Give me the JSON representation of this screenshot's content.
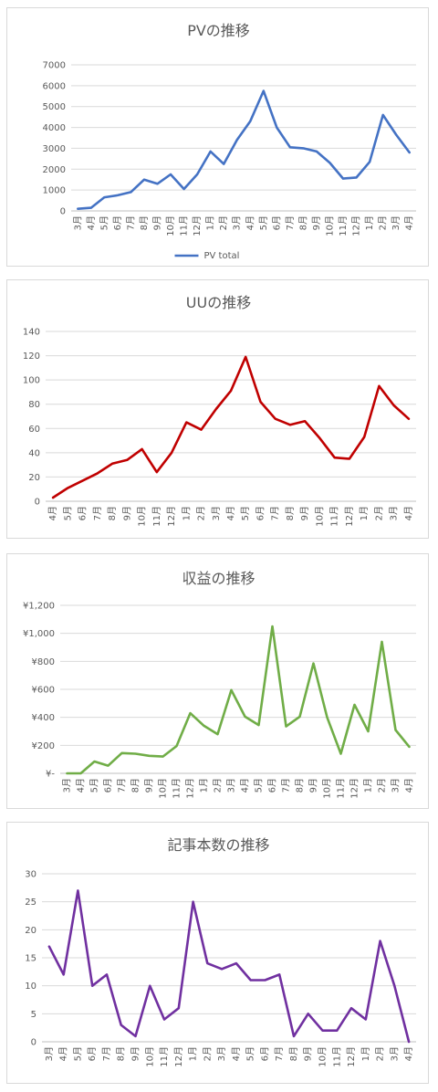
{
  "chart_data": [
    {
      "type": "line",
      "title": "PVの推移",
      "categories": [
        "3月",
        "4月",
        "5月",
        "6月",
        "7月",
        "8月",
        "9月",
        "10月",
        "11月",
        "12月",
        "1月",
        "2月",
        "3月",
        "4月",
        "5月",
        "6月",
        "7月",
        "8月",
        "9月",
        "10月",
        "11月",
        "12月",
        "1月",
        "2月",
        "3月",
        "4月"
      ],
      "series": [
        {
          "name": "PV total",
          "values": [
            100,
            150,
            650,
            750,
            900,
            1500,
            1300,
            1750,
            1050,
            1750,
            2850,
            2250,
            3400,
            4300,
            5750,
            4000,
            3050,
            3000,
            2850,
            2300,
            1550,
            1600,
            2350,
            4600,
            3650,
            2800
          ]
        }
      ],
      "yticks": [
        "0",
        "1000",
        "2000",
        "3000",
        "4000",
        "5000",
        "6000",
        "7000"
      ],
      "ylim": [
        0,
        7000
      ],
      "color": "#4472c4",
      "legend": "bottom",
      "grid": true
    },
    {
      "type": "line",
      "title": "UUの推移",
      "categories": [
        "4月",
        "5月",
        "6月",
        "7月",
        "8月",
        "9月",
        "10月",
        "11月",
        "12月",
        "1月",
        "2月",
        "3月",
        "4月",
        "5月",
        "6月",
        "7月",
        "8月",
        "9月",
        "10月",
        "11月",
        "12月",
        "1月",
        "2月",
        "3月",
        "4月"
      ],
      "series": [
        {
          "values": [
            3,
            11,
            17,
            23,
            31,
            34,
            43,
            24,
            40,
            65,
            59,
            76,
            91,
            119,
            82,
            68,
            63,
            66,
            52,
            36,
            35,
            53,
            95,
            79,
            68
          ]
        }
      ],
      "yticks": [
        "0",
        "20",
        "40",
        "60",
        "80",
        "100",
        "120",
        "140"
      ],
      "ylim": [
        0,
        140
      ],
      "color": "#c00000",
      "grid": true
    },
    {
      "type": "line",
      "title": "収益の推移",
      "categories": [
        "3月",
        "4月",
        "5月",
        "6月",
        "7月",
        "8月",
        "9月",
        "10月",
        "11月",
        "12月",
        "1月",
        "2月",
        "3月",
        "4月",
        "5月",
        "6月",
        "7月",
        "8月",
        "9月",
        "10月",
        "11月",
        "12月",
        "1月",
        "2月",
        "3月",
        "4月"
      ],
      "series": [
        {
          "values": [
            0,
            0,
            85,
            55,
            145,
            140,
            125,
            120,
            195,
            430,
            340,
            280,
            595,
            405,
            345,
            1050,
            335,
            405,
            785,
            400,
            140,
            490,
            300,
            940,
            310,
            190
          ]
        }
      ],
      "yticks": [
        "¥-",
        "¥200",
        "¥400",
        "¥600",
        "¥800",
        "¥1,000",
        "¥1,200"
      ],
      "ylim": [
        0,
        1200
      ],
      "color": "#70ad47",
      "grid": true
    },
    {
      "type": "line",
      "title": "記事本数の推移",
      "categories": [
        "3月",
        "4月",
        "5月",
        "6月",
        "7月",
        "8月",
        "9月",
        "10月",
        "11月",
        "12月",
        "1月",
        "2月",
        "3月",
        "4月",
        "5月",
        "6月",
        "7月",
        "8月",
        "9月",
        "10月",
        "11月",
        "12月",
        "1月",
        "2月",
        "3月",
        "4月"
      ],
      "series": [
        {
          "values": [
            17,
            12,
            27,
            10,
            12,
            3,
            1,
            10,
            4,
            6,
            25,
            14,
            13,
            14,
            11,
            11,
            12,
            1,
            5,
            2,
            2,
            6,
            4,
            18,
            10,
            0
          ]
        }
      ],
      "yticks": [
        "0",
        "5",
        "10",
        "15",
        "20",
        "25",
        "30"
      ],
      "ylim": [
        0,
        30
      ],
      "color": "#7030a0",
      "grid": true
    }
  ]
}
